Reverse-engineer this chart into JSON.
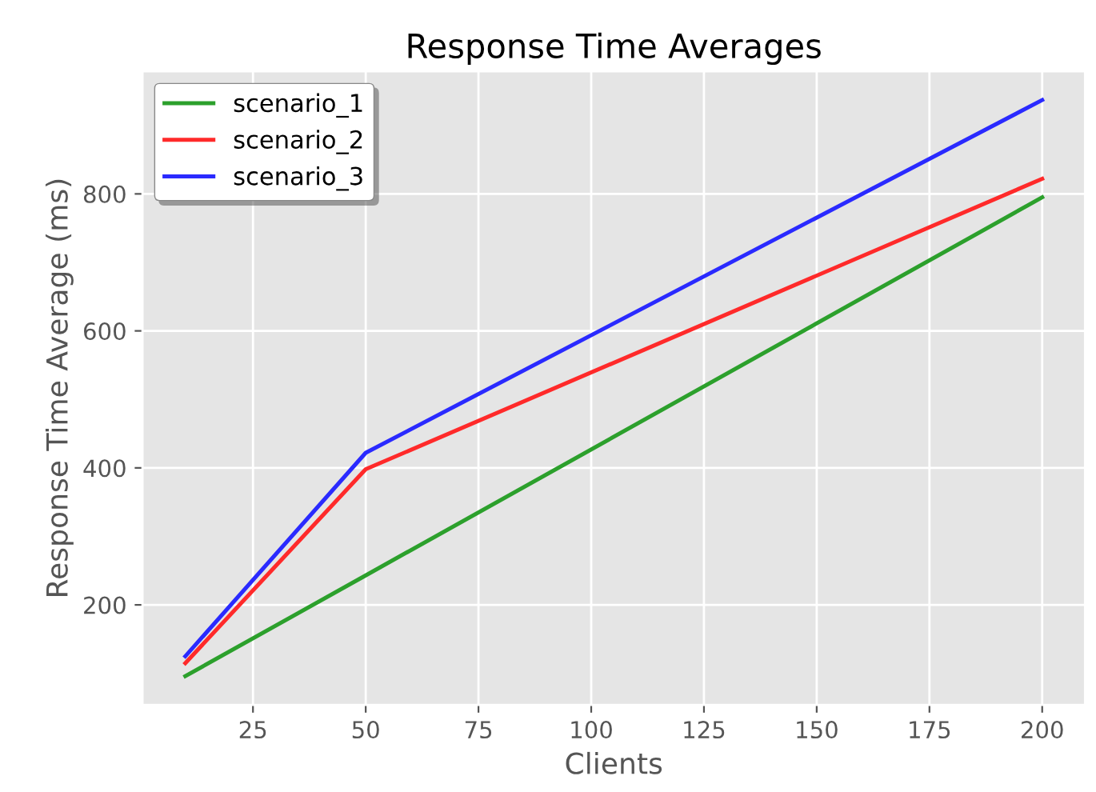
{
  "chart_data": {
    "type": "line",
    "title": "Response Time Averages",
    "xlabel": "Clients",
    "ylabel": "Response Time Average (ms)",
    "x": [
      10,
      50,
      200
    ],
    "series": [
      {
        "name": "scenario_1",
        "color": "#2ca02c",
        "values": [
          96,
          243,
          795
        ]
      },
      {
        "name": "scenario_2",
        "color": "#ff2a2a",
        "values": [
          115,
          398,
          822
        ]
      },
      {
        "name": "scenario_3",
        "color": "#2a2aff",
        "values": [
          125,
          422,
          937
        ]
      }
    ],
    "xlim": [
      0.5,
      209.5
    ],
    "ylim": [
      54,
      979
    ],
    "xticks": [
      25,
      50,
      75,
      100,
      125,
      150,
      175,
      200
    ],
    "yticks": [
      200,
      400,
      600,
      800
    ],
    "grid": true,
    "legend": "top left",
    "line_style": "solid",
    "marker": "none"
  }
}
